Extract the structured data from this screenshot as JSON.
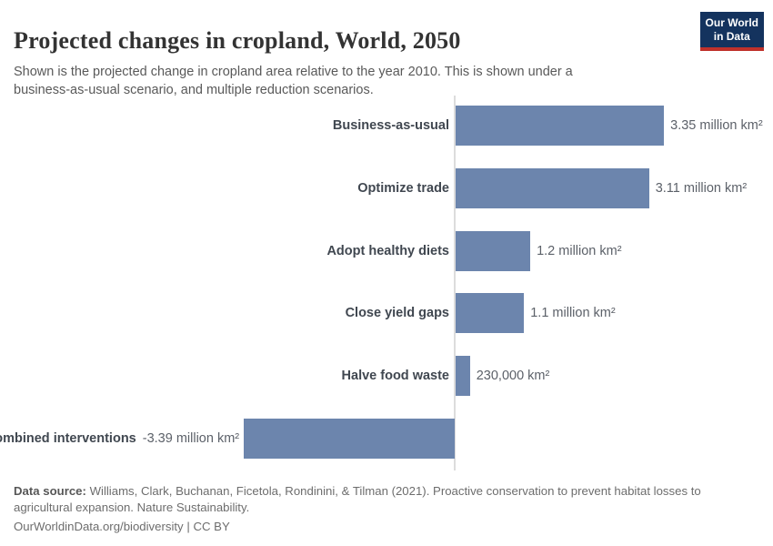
{
  "header": {
    "title": "Projected changes in cropland, World, 2050",
    "subtitle": "Shown is the projected change in cropland area relative to the year 2010. This is shown under a business-as-usual scenario, and multiple reduction scenarios.",
    "logo": {
      "line1": "Our World",
      "line2": "in Data",
      "bg_color": "#14335e",
      "accent_color": "#c0312b"
    }
  },
  "chart_data": {
    "type": "bar",
    "orientation": "horizontal",
    "title": "Projected changes in cropland, World, 2050",
    "unit": "million km²",
    "categories": [
      "Business-as-usual",
      "Optimize trade",
      "Adopt healthy diets",
      "Close yield gaps",
      "Halve food waste",
      "Combined interventions"
    ],
    "values": [
      3.35,
      3.11,
      1.2,
      1.1,
      0.23,
      -3.39
    ],
    "value_labels": [
      "3.35 million km²",
      "3.11 million km²",
      "1.2 million km²",
      "1.1 million km²",
      "230,000 km²",
      "-3.39 million km²"
    ],
    "xlim": [
      -3.39,
      3.35
    ],
    "baseline": 0,
    "grid": false,
    "legend": false,
    "bar_color": "#6c85ad",
    "axis_line_color": "#dcdcdc"
  },
  "footer": {
    "source_label": "Data source:",
    "source_text": "Williams, Clark, Buchanan, Ficetola, Rondinini, & Tilman (2021). Proactive conservation to prevent habitat losses to agricultural expansion. Nature Sustainability.",
    "link_text": "OurWorldinData.org/biodiversity",
    "separator": "|",
    "license": "CC BY"
  }
}
